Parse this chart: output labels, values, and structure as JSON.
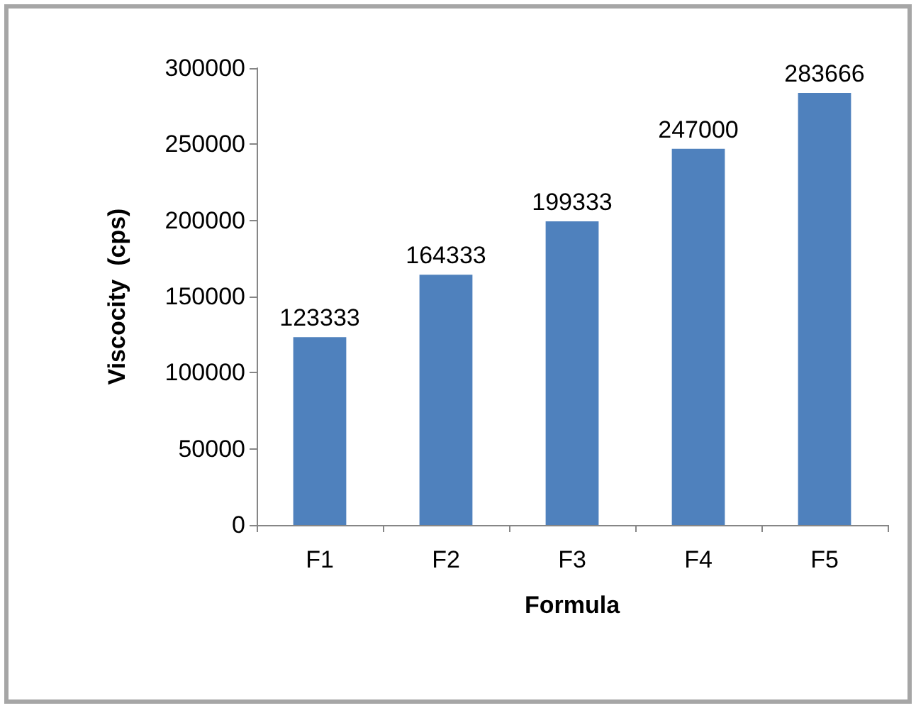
{
  "chart_data": {
    "type": "bar",
    "xlabel": "Formula",
    "ylabel": "Viscocity  (cps)",
    "categories": [
      "F1",
      "F2",
      "F3",
      "F4",
      "F5"
    ],
    "values": [
      123333,
      164333,
      199333,
      247000,
      283666
    ],
    "color": "#4f81bd",
    "ylim": [
      0,
      300000
    ],
    "yticks": [
      0,
      50000,
      100000,
      150000,
      200000,
      250000,
      300000
    ],
    "grid": false,
    "data_labels": true
  }
}
